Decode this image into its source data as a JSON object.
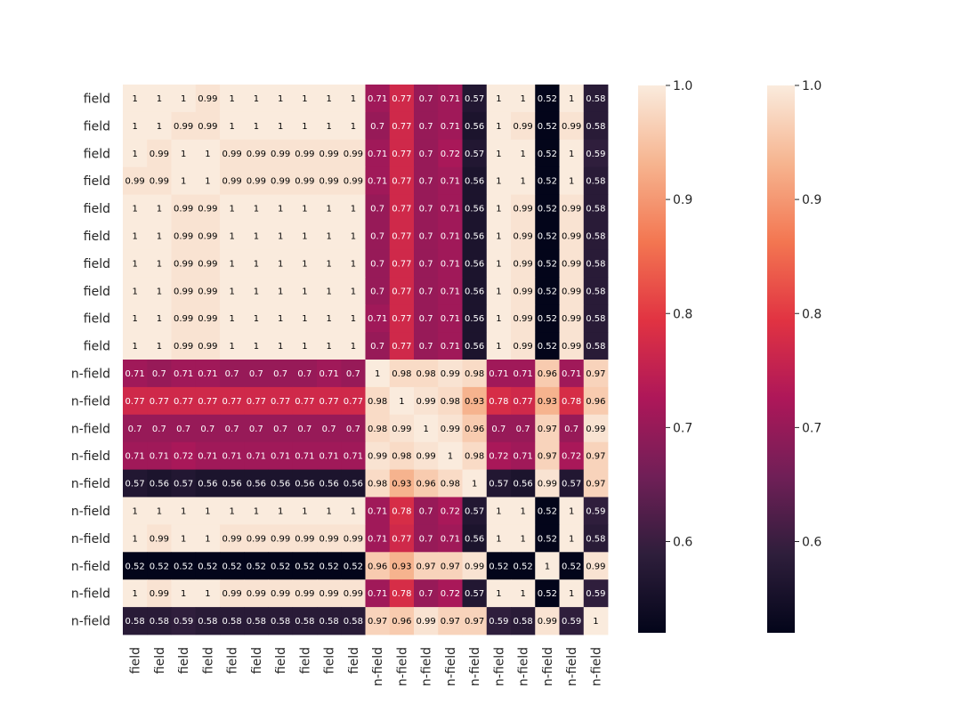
{
  "chart_data": {
    "type": "heatmap",
    "title": "",
    "xlabel": "",
    "ylabel": "",
    "row_labels": [
      "field",
      "field",
      "field",
      "field",
      "field",
      "field",
      "field",
      "field",
      "field",
      "field",
      "n-field",
      "n-field",
      "n-field",
      "n-field",
      "n-field",
      "n-field",
      "n-field",
      "n-field",
      "n-field",
      "n-field"
    ],
    "col_labels": [
      "field",
      "field",
      "field",
      "field",
      "field",
      "field",
      "field",
      "field",
      "field",
      "field",
      "n-field",
      "n-field",
      "n-field",
      "n-field",
      "n-field",
      "n-field",
      "n-field",
      "n-field",
      "n-field",
      "n-field"
    ],
    "values": [
      [
        1,
        1,
        1,
        0.99,
        1,
        1,
        1,
        1,
        1,
        1,
        0.71,
        0.77,
        0.7,
        0.71,
        0.57,
        1,
        1,
        0.52,
        1,
        0.58
      ],
      [
        1,
        1,
        0.99,
        0.99,
        1,
        1,
        1,
        1,
        1,
        1,
        0.7,
        0.77,
        0.7,
        0.71,
        0.56,
        1,
        0.99,
        0.52,
        0.99,
        0.58
      ],
      [
        1,
        0.99,
        1,
        1,
        0.99,
        0.99,
        0.99,
        0.99,
        0.99,
        0.99,
        0.71,
        0.77,
        0.7,
        0.72,
        0.57,
        1,
        1,
        0.52,
        1,
        0.59
      ],
      [
        0.99,
        0.99,
        1,
        1,
        0.99,
        0.99,
        0.99,
        0.99,
        0.99,
        0.99,
        0.71,
        0.77,
        0.7,
        0.71,
        0.56,
        1,
        1,
        0.52,
        1,
        0.58
      ],
      [
        1,
        1,
        0.99,
        0.99,
        1,
        1,
        1,
        1,
        1,
        1,
        0.7,
        0.77,
        0.7,
        0.71,
        0.56,
        1,
        0.99,
        0.52,
        0.99,
        0.58
      ],
      [
        1,
        1,
        0.99,
        0.99,
        1,
        1,
        1,
        1,
        1,
        1,
        0.7,
        0.77,
        0.7,
        0.71,
        0.56,
        1,
        0.99,
        0.52,
        0.99,
        0.58
      ],
      [
        1,
        1,
        0.99,
        0.99,
        1,
        1,
        1,
        1,
        1,
        1,
        0.7,
        0.77,
        0.7,
        0.71,
        0.56,
        1,
        0.99,
        0.52,
        0.99,
        0.58
      ],
      [
        1,
        1,
        0.99,
        0.99,
        1,
        1,
        1,
        1,
        1,
        1,
        0.7,
        0.77,
        0.7,
        0.71,
        0.56,
        1,
        0.99,
        0.52,
        0.99,
        0.58
      ],
      [
        1,
        1,
        0.99,
        0.99,
        1,
        1,
        1,
        1,
        1,
        1,
        0.71,
        0.77,
        0.7,
        0.71,
        0.56,
        1,
        0.99,
        0.52,
        0.99,
        0.58
      ],
      [
        1,
        1,
        0.99,
        0.99,
        1,
        1,
        1,
        1,
        1,
        1,
        0.7,
        0.77,
        0.7,
        0.71,
        0.56,
        1,
        0.99,
        0.52,
        0.99,
        0.58
      ],
      [
        0.71,
        0.7,
        0.71,
        0.71,
        0.7,
        0.7,
        0.7,
        0.7,
        0.71,
        0.7,
        1,
        0.98,
        0.98,
        0.99,
        0.98,
        0.71,
        0.71,
        0.96,
        0.71,
        0.97
      ],
      [
        0.77,
        0.77,
        0.77,
        0.77,
        0.77,
        0.77,
        0.77,
        0.77,
        0.77,
        0.77,
        0.98,
        1,
        0.99,
        0.98,
        0.93,
        0.78,
        0.77,
        0.93,
        0.78,
        0.96
      ],
      [
        0.7,
        0.7,
        0.7,
        0.7,
        0.7,
        0.7,
        0.7,
        0.7,
        0.7,
        0.7,
        0.98,
        0.99,
        1,
        0.99,
        0.96,
        0.7,
        0.7,
        0.97,
        0.7,
        0.99
      ],
      [
        0.71,
        0.71,
        0.72,
        0.71,
        0.71,
        0.71,
        0.71,
        0.71,
        0.71,
        0.71,
        0.99,
        0.98,
        0.99,
        1,
        0.98,
        0.72,
        0.71,
        0.97,
        0.72,
        0.97
      ],
      [
        0.57,
        0.56,
        0.57,
        0.56,
        0.56,
        0.56,
        0.56,
        0.56,
        0.56,
        0.56,
        0.98,
        0.93,
        0.96,
        0.98,
        1,
        0.57,
        0.56,
        0.99,
        0.57,
        0.97
      ],
      [
        1,
        1,
        1,
        1,
        1,
        1,
        1,
        1,
        1,
        1,
        0.71,
        0.78,
        0.7,
        0.72,
        0.57,
        1,
        1,
        0.52,
        1,
        0.59
      ],
      [
        1,
        0.99,
        1,
        1,
        0.99,
        0.99,
        0.99,
        0.99,
        0.99,
        0.99,
        0.71,
        0.77,
        0.7,
        0.71,
        0.56,
        1,
        1,
        0.52,
        1,
        0.58
      ],
      [
        0.52,
        0.52,
        0.52,
        0.52,
        0.52,
        0.52,
        0.52,
        0.52,
        0.52,
        0.52,
        0.96,
        0.93,
        0.97,
        0.97,
        0.99,
        0.52,
        0.52,
        1,
        0.52,
        0.99
      ],
      [
        1,
        0.99,
        1,
        1,
        0.99,
        0.99,
        0.99,
        0.99,
        0.99,
        0.99,
        0.71,
        0.78,
        0.7,
        0.72,
        0.57,
        1,
        1,
        0.52,
        1,
        0.59
      ],
      [
        0.58,
        0.58,
        0.59,
        0.58,
        0.58,
        0.58,
        0.58,
        0.58,
        0.58,
        0.58,
        0.97,
        0.96,
        0.99,
        0.97,
        0.97,
        0.59,
        0.58,
        0.99,
        0.59,
        1
      ]
    ],
    "colormap": "rocket",
    "color_range": [
      0.52,
      1.0
    ],
    "colorbars": [
      {
        "ticks": [
          1.0,
          0.9,
          0.8,
          0.7,
          0.6
        ],
        "tick_labels": [
          "1.0",
          "0.9",
          "0.8",
          "0.7",
          "0.6"
        ]
      },
      {
        "ticks": [
          1.0,
          0.9,
          0.8,
          0.7,
          0.6
        ],
        "tick_labels": [
          "1.0",
          "0.9",
          "0.8",
          "0.7",
          "0.6"
        ]
      }
    ],
    "annotations": "cell values printed in each cell"
  },
  "colors": {
    "rocket_stops": [
      "#03051a",
      "#2e1e3b",
      "#701f57",
      "#ae1759",
      "#e13342",
      "#f37651",
      "#f6b48f",
      "#faebdd"
    ],
    "text_dark": "#262626",
    "annot_dark": "#000000",
    "annot_light": "#ffffff"
  }
}
